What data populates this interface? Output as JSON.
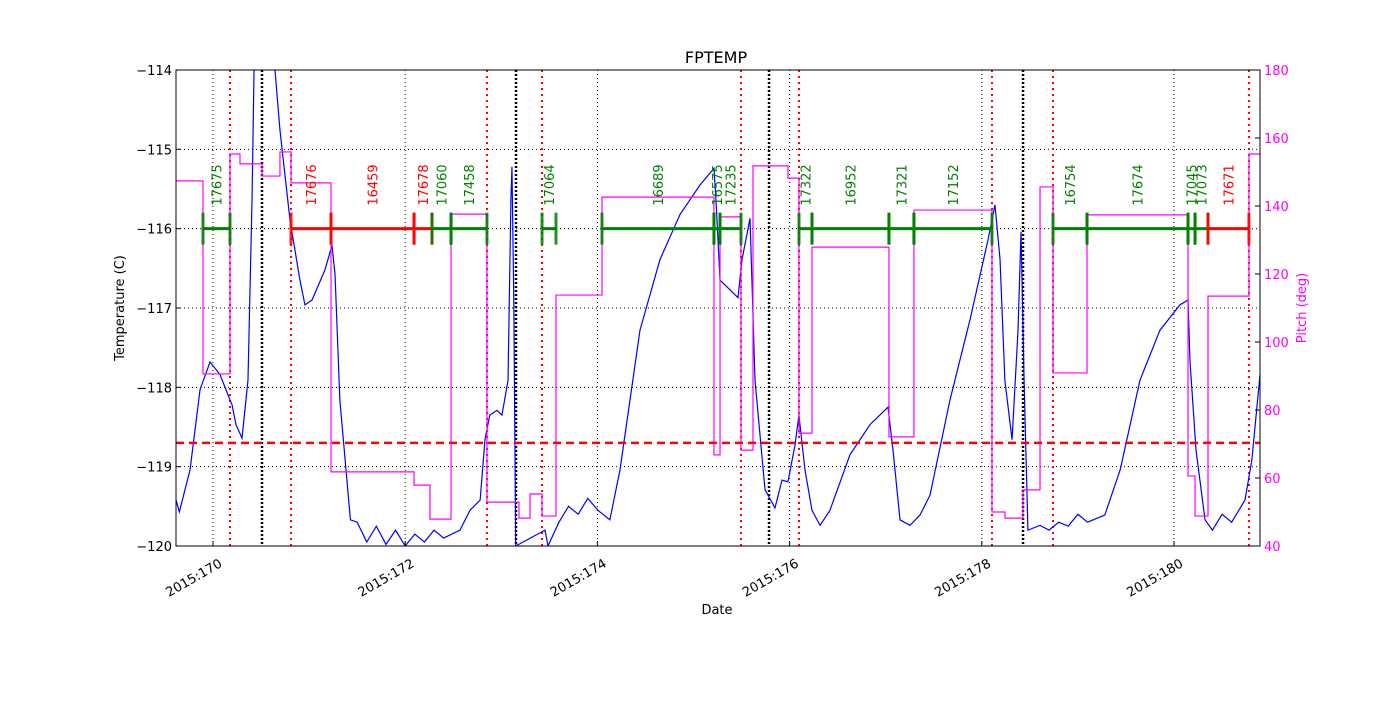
{
  "chart_data": {
    "type": "line",
    "title": "FPTEMP",
    "xlabel": "Date",
    "ylabel": "Temperature (C)",
    "y2label": "Pitch (deg)",
    "grid": true,
    "xlim": [
      169.615,
      180.895
    ],
    "xticks": [
      {
        "value": 170,
        "label": "2015:170"
      },
      {
        "value": 172,
        "label": "2015:172"
      },
      {
        "value": 174,
        "label": "2015:174"
      },
      {
        "value": 176,
        "label": "2015:176"
      },
      {
        "value": 178,
        "label": "2015:178"
      },
      {
        "value": 180,
        "label": "2015:180"
      }
    ],
    "ylim": [
      -120,
      -114
    ],
    "yticks": [
      {
        "value": -120,
        "label": "−120"
      },
      {
        "value": -119,
        "label": "−119"
      },
      {
        "value": -118,
        "label": "−118"
      },
      {
        "value": -117,
        "label": "−117"
      },
      {
        "value": -116,
        "label": "−116"
      },
      {
        "value": -115,
        "label": "−115"
      },
      {
        "value": -114,
        "label": "−114"
      }
    ],
    "y2lim": [
      40,
      180
    ],
    "y2ticks": [
      40,
      60,
      80,
      100,
      120,
      140,
      160,
      180
    ],
    "y2color": "#ff00ff",
    "series": [
      {
        "color": "#0000ff",
        "axis": "y",
        "step": false,
        "x": [
          169.615,
          169.65,
          169.761,
          169.865,
          169.969,
          170.073,
          170.177,
          170.198,
          170.239,
          170.302,
          170.364,
          170.406,
          170.427,
          170.45,
          170.63,
          170.645,
          170.697,
          170.801,
          170.905,
          170.957,
          171.03,
          171.165,
          171.238,
          171.27,
          171.32,
          171.43,
          171.5,
          171.6,
          171.7,
          171.8,
          171.9,
          172.0,
          172.1,
          172.2,
          172.3,
          172.4,
          172.57,
          172.674,
          172.78,
          172.83,
          172.88,
          172.955,
          173.007,
          173.07,
          173.1,
          173.111,
          173.13,
          173.15,
          173.455,
          173.486,
          173.6,
          173.7,
          173.8,
          173.9,
          174.006,
          174.13,
          174.235,
          174.443,
          174.651,
          174.86,
          175.068,
          175.213,
          175.234,
          175.276,
          175.38,
          175.463,
          175.505,
          175.588,
          175.64,
          175.744,
          175.848,
          175.921,
          175.983,
          176.056,
          176.097,
          176.16,
          176.233,
          176.317,
          176.42,
          176.628,
          176.837,
          177.024,
          177.076,
          177.149,
          177.253,
          177.357,
          177.461,
          177.669,
          177.877,
          178.065,
          178.137,
          178.19,
          178.24,
          178.315,
          178.377,
          178.408,
          178.44,
          178.48,
          178.606,
          178.7,
          178.8,
          178.9,
          179.0,
          179.1,
          179.28,
          179.44,
          179.646,
          179.854,
          180.062,
          180.146,
          180.166,
          180.229,
          180.323,
          180.4,
          180.5,
          180.6,
          180.739,
          180.81,
          180.895
        ],
        "values": [
          -119.42,
          -119.57,
          -119.04,
          -118.03,
          -117.68,
          -117.84,
          -118.16,
          -118.22,
          -118.47,
          -118.64,
          -117.91,
          -115.64,
          -114,
          -113.3,
          -113.3,
          -114,
          -114.76,
          -115.89,
          -116.65,
          -116.96,
          -116.9,
          -116.52,
          -116.21,
          -116.58,
          -118.16,
          -119.67,
          -119.7,
          -119.95,
          -119.75,
          -119.98,
          -119.8,
          -120,
          -119.85,
          -119.95,
          -119.8,
          -119.9,
          -119.8,
          -119.55,
          -119.42,
          -118.66,
          -118.35,
          -118.29,
          -118.35,
          -117.91,
          -115.64,
          -115.22,
          -116.9,
          -120,
          -119.8,
          -120,
          -119.7,
          -119.5,
          -119.6,
          -119.4,
          -119.55,
          -119.67,
          -119.04,
          -117.28,
          -116.39,
          -115.82,
          -115.45,
          -115.24,
          -115.64,
          -116.65,
          -116.77,
          -116.87,
          -116.39,
          -115.87,
          -117.91,
          -119.29,
          -119.52,
          -119.17,
          -119.19,
          -118.73,
          -118.35,
          -119.04,
          -119.55,
          -119.74,
          -119.55,
          -118.85,
          -118.47,
          -118.25,
          -118.79,
          -119.67,
          -119.74,
          -119.61,
          -119.36,
          -118.16,
          -117.15,
          -116.14,
          -115.7,
          -116.39,
          -117.91,
          -118.66,
          -117.28,
          -116.04,
          -117.91,
          -119.8,
          -119.74,
          -119.8,
          -119.7,
          -119.75,
          -119.6,
          -119.7,
          -119.61,
          -119.04,
          -117.91,
          -117.28,
          -116.96,
          -116.9,
          -117.66,
          -118.79,
          -119.67,
          -119.8,
          -119.6,
          -119.7,
          -119.42,
          -118.92,
          -117.84
        ]
      },
      {
        "color": "#ff00ff",
        "axis": "y2",
        "step": true,
        "x": [
          169.615,
          169.896,
          170.177,
          170.281,
          170.51,
          170.697,
          170.812,
          171.228,
          172.092,
          172.258,
          172.477,
          172.851,
          173.184,
          173.299,
          173.424,
          173.569,
          174.048,
          175.213,
          175.276,
          175.494,
          175.619,
          175.983,
          176.098,
          176.233,
          177.034,
          177.294,
          178.106,
          178.241,
          178.429,
          178.606,
          178.741,
          179.095,
          180.146,
          180.219,
          180.354,
          180.78
        ],
        "values": [
          147.4,
          90.6,
          155.3,
          152.4,
          148.8,
          155.9,
          146.8,
          61.8,
          57.9,
          47.9,
          137.6,
          52.9,
          48.2,
          55.3,
          48.8,
          113.8,
          142.6,
          66.8,
          136.8,
          68.2,
          151.8,
          148.2,
          73.2,
          127.9,
          72.1,
          138.8,
          50,
          48.2,
          56.5,
          145.6,
          90.9,
          137.4,
          60.6,
          48.8,
          113.5,
          155.3
        ]
      }
    ],
    "limit_line": {
      "value": -118.7,
      "color": "#ff0000"
    },
    "red_vlines": [
      170.177,
      170.812,
      172.851,
      173.424,
      175.494,
      176.098,
      178.106,
      178.741,
      180.78
    ],
    "black_vlines": [
      170.51,
      173.153,
      175.786,
      178.429
    ],
    "obsid_level": -116,
    "obsids": [
      {
        "label": "17675",
        "start": 169.896,
        "end": 170.177,
        "color": "#008000"
      },
      {
        "label": "17676",
        "start": 170.812,
        "end": 171.228,
        "color": "#ff0000"
      },
      {
        "label": "16459",
        "start": 171.228,
        "end": 172.092,
        "color": "#ff0000"
      },
      {
        "label": "17678",
        "start": 172.092,
        "end": 172.279,
        "color": "#ff0000"
      },
      {
        "label": "17060",
        "start": 172.279,
        "end": 172.477,
        "color": "#008000"
      },
      {
        "label": "17458",
        "start": 172.477,
        "end": 172.851,
        "color": "#008000"
      },
      {
        "label": "17064",
        "start": 173.424,
        "end": 173.569,
        "color": "#008000"
      },
      {
        "label": "16689",
        "start": 174.048,
        "end": 175.213,
        "color": "#008000"
      },
      {
        "label": "16575",
        "start": 175.213,
        "end": 175.276,
        "color": "#008000"
      },
      {
        "label": "17235",
        "start": 175.276,
        "end": 175.494,
        "color": "#008000"
      },
      {
        "label": "17322",
        "start": 176.098,
        "end": 176.233,
        "color": "#008000"
      },
      {
        "label": "16952",
        "start": 176.233,
        "end": 177.034,
        "color": "#008000"
      },
      {
        "label": "17321",
        "start": 177.034,
        "end": 177.294,
        "color": "#008000"
      },
      {
        "label": "17152",
        "start": 177.294,
        "end": 178.106,
        "color": "#008000"
      },
      {
        "label": "16754",
        "start": 178.741,
        "end": 179.095,
        "color": "#008000"
      },
      {
        "label": "17674",
        "start": 179.095,
        "end": 180.146,
        "color": "#008000"
      },
      {
        "label": "17045",
        "start": 180.146,
        "end": 180.219,
        "color": "#008000"
      },
      {
        "label": "17073",
        "start": 180.219,
        "end": 180.354,
        "color": "#008000"
      },
      {
        "label": "17671",
        "start": 180.354,
        "end": 180.78,
        "color": "#ff0000"
      }
    ]
  }
}
